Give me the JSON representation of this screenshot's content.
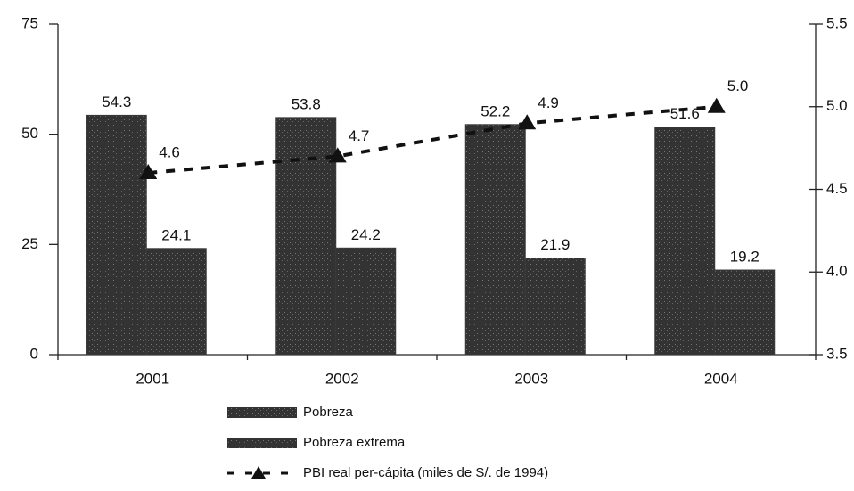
{
  "chart_data": {
    "type": "bar",
    "categories": [
      "2001",
      "2002",
      "2003",
      "2004"
    ],
    "series": [
      {
        "name": "Pobreza",
        "color": "#3a3a3a",
        "values": [
          54.3,
          53.8,
          52.2,
          51.6
        ]
      },
      {
        "name": "Pobreza extrema",
        "color": "#3a3a3a",
        "values": [
          24.1,
          24.2,
          21.9,
          19.2
        ]
      },
      {
        "name": "PBI real per-cápita (miles de S/. de 1994)",
        "color": "#111111",
        "type": "line",
        "axis": "y2",
        "values": [
          4.6,
          4.7,
          4.9,
          5.0
        ],
        "value_labels": [
          "4.6",
          "4.7",
          "4.9",
          "5.0"
        ]
      }
    ],
    "ylim": [
      0,
      75
    ],
    "yticks": [
      0,
      25,
      50,
      75
    ],
    "y2lim": [
      3.5,
      5.5
    ],
    "y2ticks": [
      3.5,
      {
        "value": 4.0,
        "label": "4.0"
      },
      4.5,
      {
        "value": 5.0,
        "label": "5.0"
      },
      5.5
    ],
    "grid": false,
    "legend": "bottom"
  }
}
